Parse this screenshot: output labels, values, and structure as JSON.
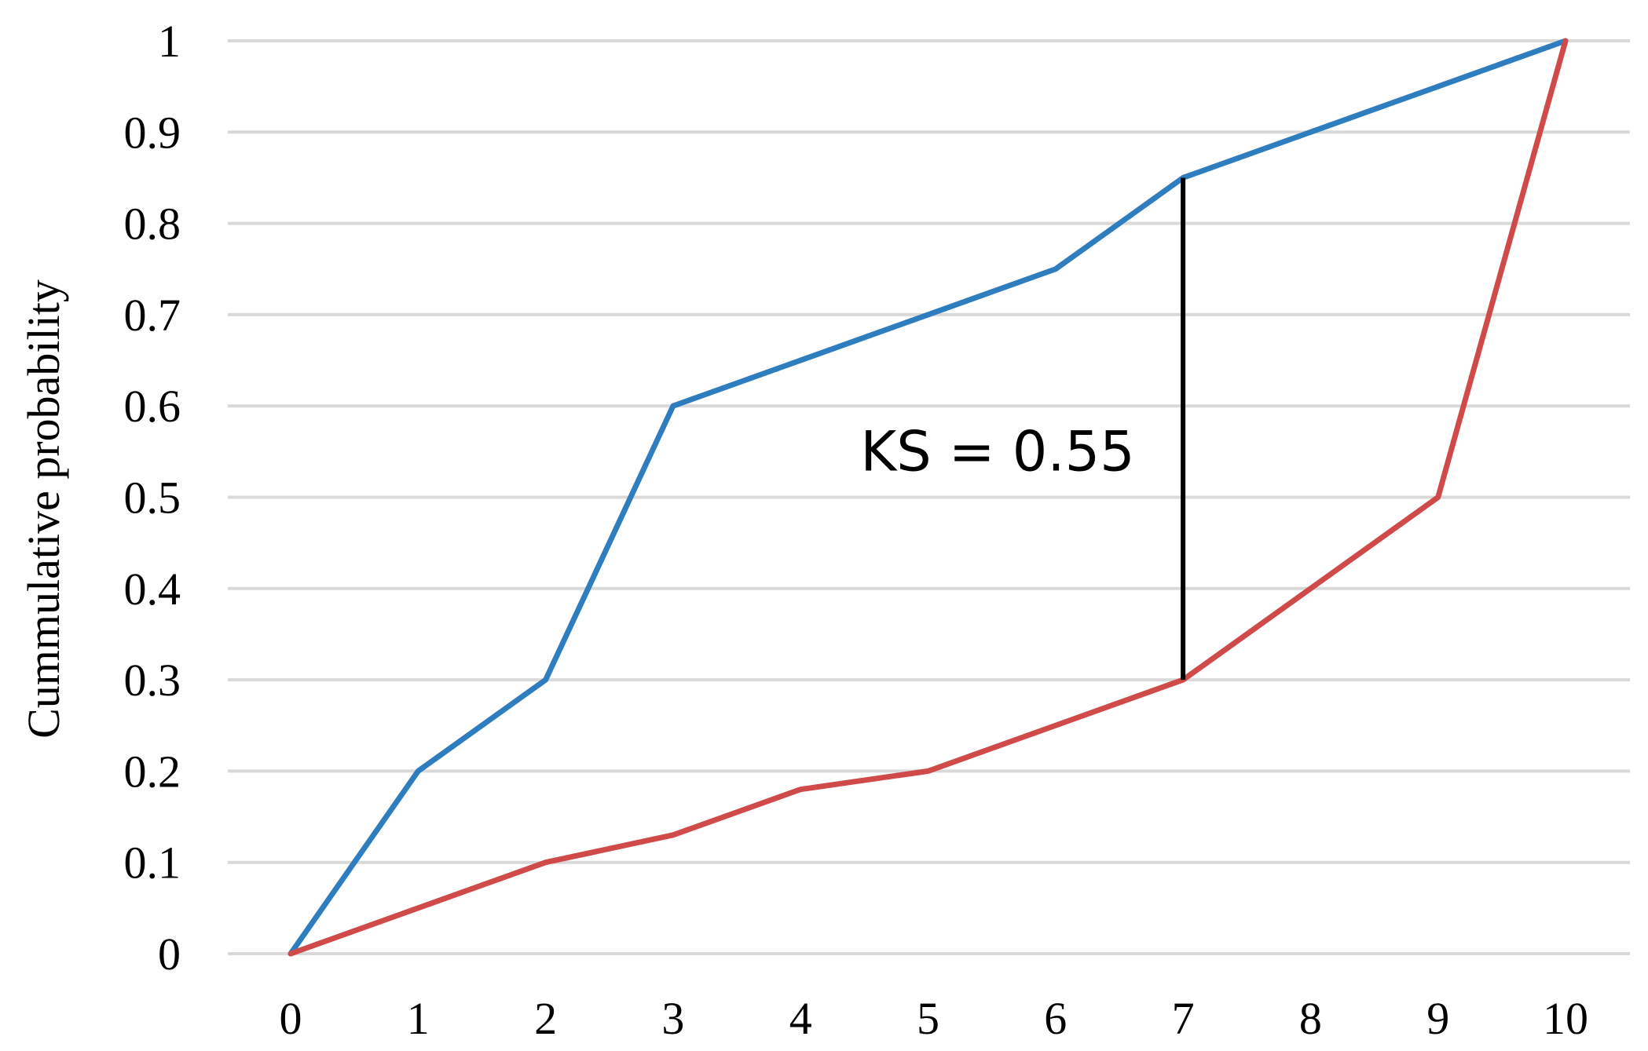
{
  "chart_data": {
    "type": "line",
    "title": "",
    "xlabel": "",
    "ylabel": "Cummulative probability",
    "x": [
      0,
      1,
      2,
      3,
      4,
      5,
      6,
      7,
      8,
      9,
      10
    ],
    "xticks": [
      "0",
      "1",
      "2",
      "3",
      "4",
      "5",
      "6",
      "7",
      "8",
      "9",
      "10"
    ],
    "yticks": [
      "0",
      "0.1",
      "0.2",
      "0.3",
      "0.4",
      "0.5",
      "0.6",
      "0.7",
      "0.8",
      "0.9",
      "1"
    ],
    "xlim": [
      0,
      10
    ],
    "ylim": [
      0,
      1
    ],
    "grid": "horizontal",
    "legend": "none",
    "series": [
      {
        "color": "#2e7ebf",
        "values": [
          0,
          0.2,
          0.3,
          0.6,
          0.65,
          0.7,
          0.75,
          0.85,
          0.9,
          0.95,
          1
        ]
      },
      {
        "color": "#d04a4a",
        "values": [
          0,
          0.05,
          0.1,
          0.13,
          0.18,
          0.2,
          0.25,
          0.3,
          0.4,
          0.5,
          1
        ]
      }
    ],
    "annotations": [
      {
        "type": "vertical-segment",
        "x": 7,
        "y_from": 0.3,
        "y_to": 0.85,
        "color": "#000000",
        "text": "KS = 0.55"
      }
    ]
  }
}
